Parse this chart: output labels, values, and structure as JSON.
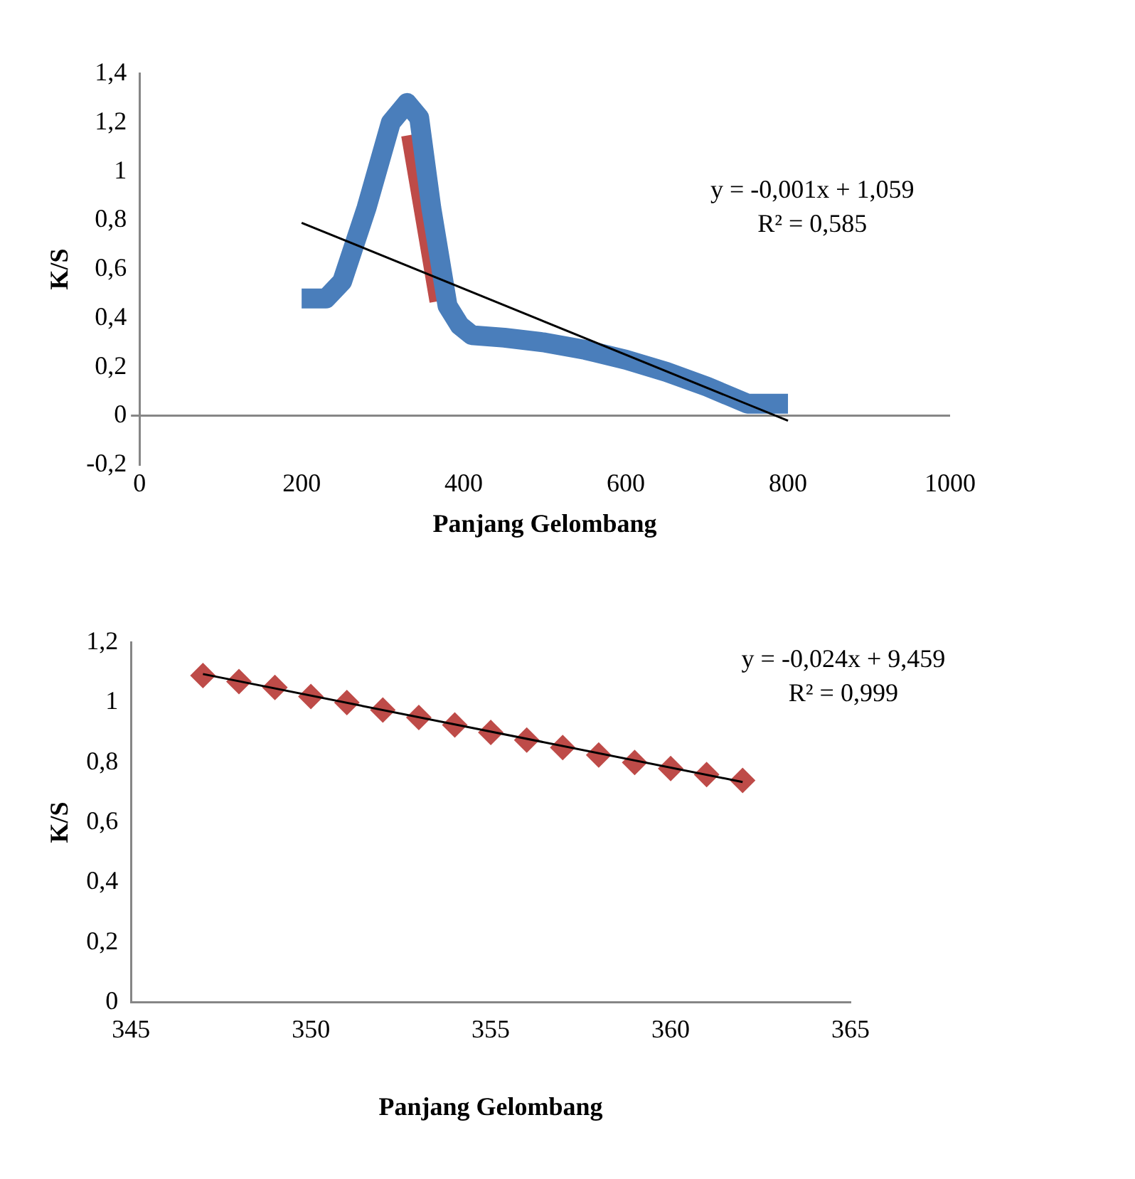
{
  "chart_data": [
    {
      "type": "line",
      "xlabel": "Panjang Gelombang",
      "ylabel": "K/S",
      "xlim": [
        0,
        1000
      ],
      "xticks": [
        0,
        200,
        400,
        600,
        800,
        1000
      ],
      "ylim": [
        -0.2,
        1.4
      ],
      "yticks": [
        {
          "value": -0.2,
          "label": "-0,2"
        },
        {
          "value": 0,
          "label": "0"
        },
        {
          "value": 0.2,
          "label": "0,2"
        },
        {
          "value": 0.4,
          "label": "0,4"
        },
        {
          "value": 0.6,
          "label": "0,6"
        },
        {
          "value": 0.8,
          "label": "0,8"
        },
        {
          "value": 1,
          "label": "1"
        },
        {
          "value": 1.2,
          "label": "1,2"
        },
        {
          "value": 1.4,
          "label": "1,4"
        }
      ],
      "grid": false,
      "legend": false,
      "annotations": [
        "y = -0,001x + 1,059",
        "R² = 0,585"
      ],
      "series": [
        {
          "color": "#4a7ebb",
          "marker": "none",
          "x": [
            200,
            230,
            250,
            280,
            310,
            330,
            345,
            360,
            380,
            395,
            410,
            450,
            500,
            550,
            600,
            650,
            700,
            750,
            770,
            800
          ],
          "values": [
            0.48,
            0.48,
            0.55,
            0.85,
            1.2,
            1.28,
            1.22,
            0.85,
            0.45,
            0.37,
            0.33,
            0.32,
            0.3,
            0.27,
            0.23,
            0.18,
            0.12,
            0.05,
            0.05,
            0.05
          ]
        },
        {
          "color": "#be4b48",
          "marker": "none",
          "x": [
            335,
            370
          ],
          "values": [
            1.15,
            0.47
          ]
        },
        {
          "type": "line",
          "color": "#000000",
          "marker": "none",
          "x": [
            200,
            800
          ],
          "values": [
            0.79,
            -0.02
          ]
        }
      ]
    },
    {
      "type": "scatter",
      "xlabel": "Panjang Gelombang",
      "ylabel": "K/S",
      "xlim": [
        345,
        365
      ],
      "xticks": [
        345,
        350,
        355,
        360,
        365
      ],
      "ylim": [
        0,
        1.2
      ],
      "yticks": [
        {
          "value": 0,
          "label": "0"
        },
        {
          "value": 0.2,
          "label": "0,2"
        },
        {
          "value": 0.4,
          "label": "0,4"
        },
        {
          "value": 0.6,
          "label": "0,6"
        },
        {
          "value": 0.8,
          "label": "0,8"
        },
        {
          "value": 1,
          "label": "1"
        },
        {
          "value": 1.2,
          "label": "1,2"
        }
      ],
      "grid": false,
      "legend": false,
      "annotations": [
        "y = -0,024x + 9,459",
        "R² = 0,999"
      ],
      "series": [
        {
          "color": "#be4b48",
          "marker": "diamond",
          "x": [
            347,
            348,
            349,
            350,
            351,
            352,
            353,
            354,
            355,
            356,
            357,
            358,
            359,
            360,
            361,
            362
          ],
          "values": [
            1.09,
            1.07,
            1.05,
            1.02,
            1.0,
            0.975,
            0.95,
            0.925,
            0.9,
            0.875,
            0.85,
            0.825,
            0.8,
            0.78,
            0.76,
            0.74
          ]
        },
        {
          "type": "line",
          "color": "#000000",
          "marker": "none",
          "x": [
            347,
            362
          ],
          "values": [
            1.095,
            0.735
          ]
        }
      ]
    }
  ]
}
